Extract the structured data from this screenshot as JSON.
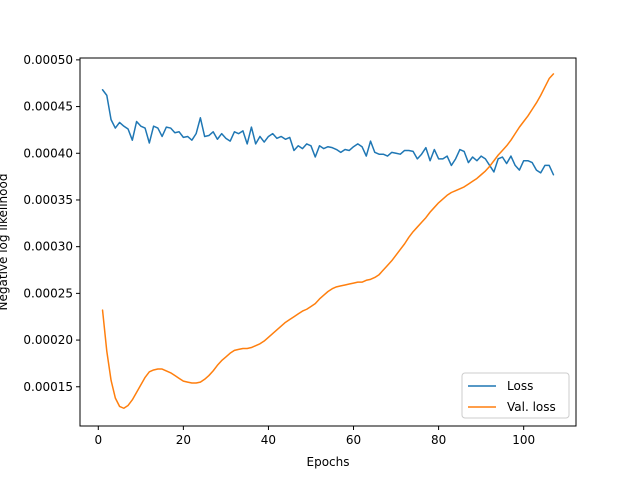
{
  "chart_data": {
    "type": "line",
    "title": "",
    "xlabel": "Epochs",
    "ylabel": "Negative log likelihood",
    "xlim": [
      -4.3,
      112.3
    ],
    "ylim": [
      0.000108,
      0.000502
    ],
    "xticks": [
      0,
      20,
      40,
      60,
      80,
      100
    ],
    "xtick_labels": [
      "0",
      "20",
      "40",
      "60",
      "80",
      "100"
    ],
    "yticks": [
      0.00015,
      0.0002,
      0.00025,
      0.0003,
      0.00035,
      0.0004,
      0.00045,
      0.0005
    ],
    "ytick_labels": [
      "0.00015",
      "0.00020",
      "0.00025",
      "0.00030",
      "0.00035",
      "0.00040",
      "0.00045",
      "0.00050"
    ],
    "grid": false,
    "legend": "lower-right",
    "series": [
      {
        "name": "Loss",
        "color": "#1f77b4",
        "x": [
          1,
          2,
          3,
          4,
          5,
          6,
          7,
          8,
          9,
          10,
          11,
          12,
          13,
          14,
          15,
          16,
          17,
          18,
          19,
          20,
          21,
          22,
          23,
          24,
          25,
          26,
          27,
          28,
          29,
          30,
          31,
          32,
          33,
          34,
          35,
          36,
          37,
          38,
          39,
          40,
          41,
          42,
          43,
          44,
          45,
          46,
          47,
          48,
          49,
          50,
          51,
          52,
          53,
          54,
          55,
          56,
          57,
          58,
          59,
          60,
          61,
          62,
          63,
          64,
          65,
          66,
          67,
          68,
          69,
          70,
          71,
          72,
          73,
          74,
          75,
          76,
          77,
          78,
          79,
          80,
          81,
          82,
          83,
          84,
          85,
          86,
          87,
          88,
          89,
          90,
          91,
          92,
          93,
          94,
          95,
          96,
          97,
          98,
          99,
          100,
          101,
          102,
          103,
          104,
          105,
          106,
          107
        ],
        "values": [
          0.000468,
          0.000462,
          0.000436,
          0.000427,
          0.000433,
          0.000429,
          0.000426,
          0.000414,
          0.000434,
          0.000429,
          0.000427,
          0.000411,
          0.000429,
          0.000427,
          0.000418,
          0.000428,
          0.000427,
          0.000422,
          0.000423,
          0.000417,
          0.000418,
          0.000414,
          0.000421,
          0.000438,
          0.000418,
          0.000419,
          0.000423,
          0.000415,
          0.000421,
          0.000416,
          0.000413,
          0.000423,
          0.000421,
          0.000424,
          0.00041,
          0.000428,
          0.00041,
          0.000418,
          0.000412,
          0.000418,
          0.000421,
          0.000416,
          0.000418,
          0.000415,
          0.000417,
          0.000403,
          0.000408,
          0.000405,
          0.00041,
          0.000408,
          0.000396,
          0.000408,
          0.000405,
          0.000407,
          0.000406,
          0.000404,
          0.000401,
          0.000404,
          0.000403,
          0.000407,
          0.00041,
          0.000407,
          0.000397,
          0.000413,
          0.000401,
          0.000399,
          0.000399,
          0.000397,
          0.000401,
          0.0004,
          0.000399,
          0.000403,
          0.000403,
          0.000402,
          0.000394,
          0.000399,
          0.000406,
          0.000392,
          0.000404,
          0.000394,
          0.000394,
          0.000397,
          0.000387,
          0.000394,
          0.000404,
          0.000402,
          0.00039,
          0.000396,
          0.000392,
          0.000397,
          0.000394,
          0.000387,
          0.00038,
          0.000394,
          0.000396,
          0.000389,
          0.000397,
          0.000387,
          0.000382,
          0.000392,
          0.000392,
          0.00039,
          0.000382,
          0.000379,
          0.000387,
          0.000387,
          0.000377
        ]
      },
      {
        "name": "Val. loss",
        "color": "#ff7f0e",
        "x": [
          1,
          2,
          3,
          4,
          5,
          6,
          7,
          8,
          9,
          10,
          11,
          12,
          13,
          14,
          15,
          16,
          17,
          18,
          19,
          20,
          21,
          22,
          23,
          24,
          25,
          26,
          27,
          28,
          29,
          30,
          31,
          32,
          33,
          34,
          35,
          36,
          37,
          38,
          39,
          40,
          41,
          42,
          43,
          44,
          45,
          46,
          47,
          48,
          49,
          50,
          51,
          52,
          53,
          54,
          55,
          56,
          57,
          58,
          59,
          60,
          61,
          62,
          63,
          64,
          65,
          66,
          67,
          68,
          69,
          70,
          71,
          72,
          73,
          74,
          75,
          76,
          77,
          78,
          79,
          80,
          81,
          82,
          83,
          84,
          85,
          86,
          87,
          88,
          89,
          90,
          91,
          92,
          93,
          94,
          95,
          96,
          97,
          98,
          99,
          100,
          101,
          102,
          103,
          104,
          105,
          106,
          107
        ],
        "values": [
          0.000232,
          0.000188,
          0.000157,
          0.000138,
          0.000129,
          0.000127,
          0.00013,
          0.000136,
          0.000144,
          0.000152,
          0.00016,
          0.000166,
          0.000168,
          0.000169,
          0.000169,
          0.000167,
          0.000165,
          0.000162,
          0.000159,
          0.000156,
          0.000155,
          0.000154,
          0.000154,
          0.000155,
          0.000158,
          0.000162,
          0.000167,
          0.000173,
          0.000178,
          0.000182,
          0.000186,
          0.000189,
          0.00019,
          0.000191,
          0.000191,
          0.000192,
          0.000194,
          0.000196,
          0.000199,
          0.000203,
          0.000207,
          0.000211,
          0.000215,
          0.000219,
          0.000222,
          0.000225,
          0.000228,
          0.000231,
          0.000233,
          0.000236,
          0.000239,
          0.000244,
          0.000248,
          0.000252,
          0.000255,
          0.000257,
          0.000258,
          0.000259,
          0.00026,
          0.000261,
          0.000262,
          0.000262,
          0.000264,
          0.000265,
          0.000267,
          0.00027,
          0.000275,
          0.00028,
          0.000285,
          0.000291,
          0.000297,
          0.000303,
          0.00031,
          0.000316,
          0.000321,
          0.000326,
          0.000331,
          0.000337,
          0.000342,
          0.000347,
          0.000351,
          0.000355,
          0.000358,
          0.00036,
          0.000362,
          0.000364,
          0.000367,
          0.00037,
          0.000373,
          0.000377,
          0.000381,
          0.000386,
          0.000392,
          0.000398,
          0.000403,
          0.000408,
          0.000414,
          0.000421,
          0.000428,
          0.000434,
          0.00044,
          0.000447,
          0.000454,
          0.000462,
          0.000471,
          0.00048,
          0.000485
        ]
      }
    ]
  }
}
